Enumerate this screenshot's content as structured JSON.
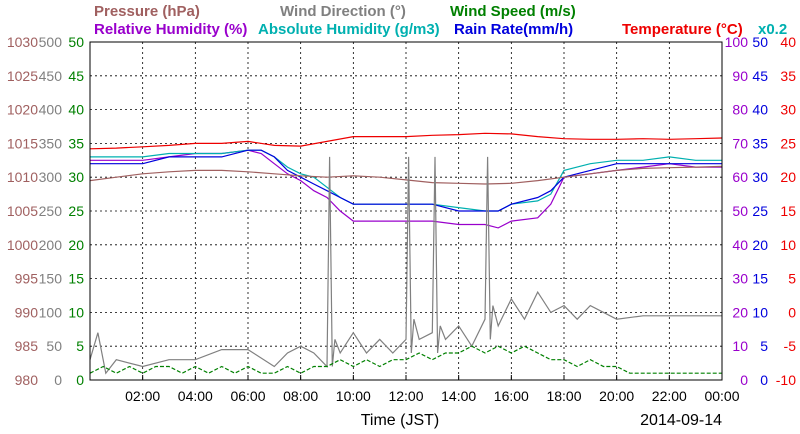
{
  "header": {
    "row1": [
      {
        "text": "Pressure (hPa)",
        "color": "#a06060"
      },
      {
        "text": "Wind Direction (°)",
        "color": "#808080"
      },
      {
        "text": "Wind Speed (m/s)",
        "color": "#008000"
      }
    ],
    "row2": [
      {
        "text": "Relative Humidity (%)",
        "color": "#9900cc"
      },
      {
        "text": "Absolute Humidity (g/m3)",
        "color": "#00b0b0"
      },
      {
        "text": "Rain Rate(mm/h)",
        "color": "#0000dd"
      },
      {
        "text": "Temperature (°C)",
        "color": "#ee0000"
      },
      {
        "text": "x0.2",
        "color": "#00b0b0"
      }
    ]
  },
  "x_axis": {
    "label": "Time (JST)",
    "date": "2014-09-14",
    "ticks": [
      "02:00",
      "04:00",
      "06:00",
      "08:00",
      "10:00",
      "12:00",
      "14:00",
      "16:00",
      "18:00",
      "20:00",
      "22:00",
      "00:00"
    ]
  },
  "left_axes": [
    {
      "name": "pressure",
      "color": "#a06060",
      "ticks": [
        "1030",
        "1025",
        "1020",
        "1015",
        "1010",
        "1005",
        "1000",
        "995",
        "990",
        "985",
        "980"
      ]
    },
    {
      "name": "wind-direction",
      "color": "#808080",
      "ticks": [
        "500",
        "450",
        "400",
        "350",
        "300",
        "250",
        "200",
        "150",
        "100",
        "50",
        "0"
      ]
    },
    {
      "name": "wind-speed",
      "color": "#008000",
      "ticks": [
        "50",
        "45",
        "40",
        "35",
        "30",
        "25",
        "20",
        "15",
        "10",
        "5",
        "0"
      ]
    }
  ],
  "right_axes": [
    {
      "name": "humidity",
      "color": "#9900cc",
      "ticks": [
        "100",
        "90",
        "80",
        "70",
        "60",
        "50",
        "40",
        "30",
        "20",
        "10",
        "0"
      ]
    },
    {
      "name": "rain-rate",
      "color": "#0000dd",
      "ticks": [
        "50",
        "45",
        "40",
        "35",
        "30",
        "25",
        "20",
        "15",
        "10",
        "5",
        "0"
      ]
    },
    {
      "name": "temperature",
      "color": "#ee0000",
      "ticks": [
        "40",
        "35",
        "30",
        "25",
        "20",
        "15",
        "10",
        "5",
        "0",
        "-5",
        "-10"
      ]
    }
  ],
  "chart_data": {
    "type": "line",
    "date": "2014-09-14",
    "x_unit": "hours (JST)",
    "x_range": [
      0,
      24
    ],
    "grid": true,
    "series": [
      {
        "name": "Temperature (°C)",
        "color": "#ee0000",
        "axis": "temperature",
        "range": [
          -10,
          40
        ],
        "x": [
          0,
          1,
          2,
          3,
          4,
          5,
          6,
          7,
          8,
          9,
          10,
          11,
          12,
          13,
          14,
          15,
          16,
          17,
          18,
          19,
          20,
          21,
          22,
          23,
          24
        ],
        "values": [
          24.2,
          24.3,
          24.5,
          24.7,
          25.0,
          25.0,
          25.3,
          24.7,
          24.6,
          25.3,
          26.0,
          26.0,
          26.0,
          26.2,
          26.3,
          26.5,
          26.4,
          26.0,
          25.7,
          25.6,
          25.6,
          25.7,
          25.6,
          25.7,
          25.8
        ]
      },
      {
        "name": "Relative Humidity (%)",
        "color": "#9900cc",
        "axis": "humidity",
        "range": [
          0,
          100
        ],
        "x": [
          0,
          1,
          2,
          3,
          4,
          5,
          6,
          6.5,
          7,
          7.5,
          8,
          8.5,
          9,
          9.5,
          10,
          11,
          12,
          13,
          14,
          15,
          15.5,
          16,
          17,
          17.5,
          18,
          19,
          20,
          21,
          22,
          23,
          24
        ],
        "values": [
          65,
          65,
          65,
          66,
          67,
          67,
          68,
          67,
          64,
          61,
          59,
          56,
          54,
          50,
          47,
          47,
          47,
          47,
          46,
          46,
          45,
          47,
          48,
          52,
          60,
          61,
          62,
          63,
          64,
          63,
          63
        ]
      },
      {
        "name": "Absolute Humidity (g/m3)",
        "color": "#00b0b0",
        "axis": "humidity",
        "range": [
          0,
          100
        ],
        "x": [
          0,
          1,
          2,
          3,
          4,
          5,
          6,
          6.5,
          7,
          7.5,
          8,
          8.5,
          9,
          9.5,
          10,
          11,
          12,
          13,
          14,
          15,
          15.5,
          16,
          17,
          17.5,
          18,
          19,
          20,
          21,
          22,
          23,
          24
        ],
        "values": [
          66,
          66,
          66,
          67,
          67,
          67,
          68,
          68,
          66,
          63,
          61,
          60,
          57,
          54,
          52,
          52,
          52,
          52,
          51,
          50,
          50,
          52,
          53,
          55,
          62,
          64,
          65,
          65,
          66,
          65,
          65
        ]
      },
      {
        "name": "Rain Rate(mm/h)",
        "color": "#0000dd",
        "axis": "rain-rate",
        "range": [
          0,
          50
        ],
        "x": [
          0,
          1,
          2,
          3,
          4,
          5,
          6,
          6.5,
          7,
          7.5,
          8,
          8.5,
          9,
          9.5,
          10,
          11,
          12,
          13,
          14,
          15,
          15.5,
          16,
          17,
          17.5,
          18,
          19,
          20,
          21,
          22,
          23,
          24
        ],
        "values": [
          32,
          32,
          32,
          33,
          33,
          33,
          34,
          34,
          33,
          31,
          30,
          29,
          28,
          27,
          26,
          26,
          26,
          26,
          25,
          25,
          25,
          26,
          27,
          28,
          30,
          31,
          32,
          32,
          32,
          32,
          32
        ]
      },
      {
        "name": "Pressure (hPa)",
        "color": "#a06060",
        "axis": "pressure",
        "range": [
          980,
          1030
        ],
        "x": [
          0,
          1,
          2,
          3,
          4,
          5,
          6,
          7,
          8,
          9,
          10,
          11,
          12,
          13,
          14,
          15,
          16,
          17,
          18,
          19,
          20,
          21,
          22,
          23,
          24
        ],
        "values": [
          1009.5,
          1010.0,
          1010.5,
          1010.8,
          1011.0,
          1011.0,
          1010.8,
          1010.5,
          1010.2,
          1010.0,
          1010.2,
          1010.0,
          1009.6,
          1009.2,
          1009.1,
          1009.0,
          1009.1,
          1009.5,
          1010.0,
          1010.5,
          1011.0,
          1011.3,
          1011.4,
          1011.5,
          1011.6
        ]
      },
      {
        "name": "Wind Direction (°)",
        "color": "#808080",
        "axis": "wind-direction",
        "range": [
          0,
          500
        ],
        "x": [
          0,
          0.3,
          0.6,
          1,
          2,
          3,
          4,
          5,
          6,
          7,
          7.5,
          8,
          8.5,
          9,
          9.1,
          9.2,
          9.3,
          9.5,
          10,
          10.5,
          11,
          11.5,
          12,
          12.1,
          12.2,
          12.3,
          12.5,
          13,
          13.1,
          13.2,
          13.3,
          13.5,
          14,
          14.5,
          15,
          15.1,
          15.2,
          15.3,
          15.5,
          16,
          16.5,
          17,
          17.5,
          18,
          18.5,
          19,
          20,
          21,
          22,
          23,
          24
        ],
        "values": [
          30,
          70,
          10,
          30,
          20,
          30,
          30,
          45,
          45,
          20,
          40,
          50,
          40,
          20,
          330,
          20,
          60,
          40,
          70,
          40,
          60,
          40,
          60,
          330,
          40,
          90,
          60,
          70,
          330,
          40,
          80,
          60,
          80,
          50,
          90,
          330,
          60,
          110,
          80,
          120,
          90,
          130,
          100,
          110,
          90,
          110,
          90,
          95,
          95,
          95,
          95
        ]
      },
      {
        "name": "Wind Speed (m/s)",
        "color": "#008000",
        "axis": "wind-speed",
        "range": [
          0,
          50
        ],
        "x": [
          0,
          0.5,
          1,
          1.5,
          2,
          2.5,
          3,
          3.5,
          4,
          4.5,
          5,
          5.5,
          6,
          6.5,
          7,
          7.5,
          8,
          8.5,
          9,
          9.5,
          10,
          10.5,
          11,
          11.5,
          12,
          12.5,
          13,
          13.5,
          14,
          14.5,
          15,
          15.5,
          16,
          16.5,
          17,
          17.5,
          18,
          18.5,
          19,
          19.5,
          20,
          20.5,
          21,
          21.5,
          22,
          22.5,
          23,
          23.5,
          24
        ],
        "values": [
          1,
          2,
          1,
          2,
          1,
          2,
          2,
          1,
          2,
          1,
          2,
          1,
          2,
          1,
          1,
          2,
          1,
          2,
          2,
          3,
          2,
          3,
          2,
          3,
          3,
          4,
          3,
          4,
          4,
          5,
          4,
          5,
          4,
          5,
          4,
          3,
          3,
          2,
          3,
          2,
          2,
          1,
          1,
          1,
          1,
          1,
          1,
          1,
          1
        ]
      }
    ]
  }
}
